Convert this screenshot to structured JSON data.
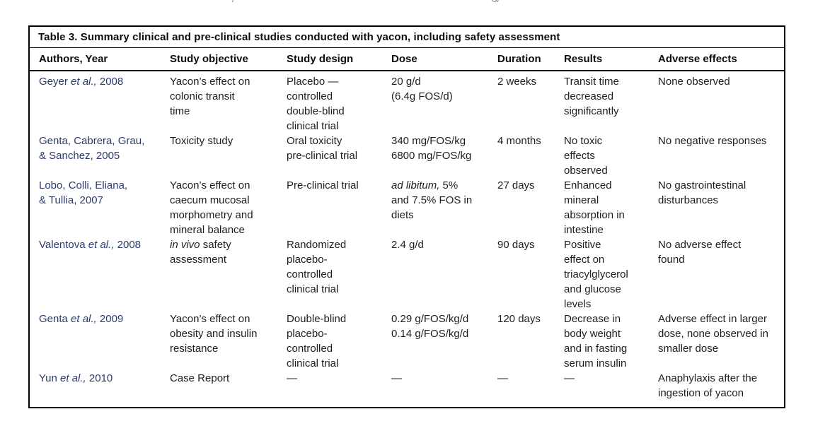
{
  "page": {
    "top_fragments": [
      "/",
      "o/"
    ]
  },
  "table": {
    "title": "Table 3. Summary clinical and pre-clinical studies conducted with yacon, including safety assessment",
    "columns": [
      "Authors, Year",
      "Study objective",
      "Study design",
      "Dose",
      "Duration",
      "Results",
      "Adverse effects"
    ],
    "colors": {
      "author_text": "#2d3a6d",
      "body_text": "#1e1e1e",
      "border": "#000000"
    },
    "rows": [
      {
        "authors": [
          {
            "t": "Geyer "
          },
          {
            "t": "et al.,",
            "i": true
          },
          {
            "t": " 2008"
          }
        ],
        "objective": [
          {
            "t": "Yacon’s effect on\ncolonic transit\ntime"
          }
        ],
        "design": [
          {
            "t": "Placebo —\ncontrolled\ndouble-blind\nclinical trial"
          }
        ],
        "dose": [
          {
            "t": "20 g/d\n(6.4g FOS/d)"
          }
        ],
        "duration": [
          {
            "t": "2 weeks"
          }
        ],
        "results": [
          {
            "t": "Transit time\ndecreased\nsignificantly"
          }
        ],
        "adverse": [
          {
            "t": "None observed"
          }
        ]
      },
      {
        "authors": [
          {
            "t": "Genta, Cabrera, Grau,\n& Sanchez, 2005"
          }
        ],
        "objective": [
          {
            "t": "Toxicity study"
          }
        ],
        "design": [
          {
            "t": "Oral toxicity\npre-clinical trial"
          }
        ],
        "dose": [
          {
            "t": "340 mg/FOS/kg\n6800 mg/FOS/kg"
          }
        ],
        "duration": [
          {
            "t": "4 months"
          }
        ],
        "results": [
          {
            "t": "No toxic\neffects\nobserved"
          }
        ],
        "adverse": [
          {
            "t": "No negative responses"
          }
        ]
      },
      {
        "authors": [
          {
            "t": "Lobo, Colli, Eliana,\n& Tullia, 2007"
          }
        ],
        "objective": [
          {
            "t": "Yacon’s effect on\ncaecum mucosal\nmorphometry and\nmineral balance"
          }
        ],
        "design": [
          {
            "t": "Pre-clinical trial"
          }
        ],
        "dose": [
          {
            "t": "ad libitum,",
            "i": true
          },
          {
            "t": " 5%\nand 7.5% FOS in\ndiets"
          }
        ],
        "duration": [
          {
            "t": "27 days"
          }
        ],
        "results": [
          {
            "t": "Enhanced\nmineral\nabsorption in\nintestine"
          }
        ],
        "adverse": [
          {
            "t": "No gastrointestinal\ndisturbances"
          }
        ]
      },
      {
        "authors": [
          {
            "t": "Valentova "
          },
          {
            "t": "et al.,",
            "i": true
          },
          {
            "t": " 2008"
          }
        ],
        "objective": [
          {
            "t": "in vivo",
            "i": true
          },
          {
            "t": " safety\nassessment"
          }
        ],
        "design": [
          {
            "t": "Randomized\nplacebo-\ncontrolled\nclinical trial"
          }
        ],
        "dose": [
          {
            "t": "2.4 g/d"
          }
        ],
        "duration": [
          {
            "t": "90 days"
          }
        ],
        "results": [
          {
            "t": "Positive\neffect on\ntriacylglycerol\nand glucose\nlevels"
          }
        ],
        "adverse": [
          {
            "t": "No adverse effect\nfound"
          }
        ]
      },
      {
        "authors": [
          {
            "t": "Genta "
          },
          {
            "t": "et al.,",
            "i": true
          },
          {
            "t": " 2009"
          }
        ],
        "objective": [
          {
            "t": "Yacon’s effect on\nobesity and insulin\nresistance"
          }
        ],
        "design": [
          {
            "t": "Double-blind\nplacebo-\ncontrolled\nclinical trial"
          }
        ],
        "dose": [
          {
            "t": "0.29 g/FOS/kg/d\n0.14 g/FOS/kg/d"
          }
        ],
        "duration": [
          {
            "t": "120 days"
          }
        ],
        "results": [
          {
            "t": "Decrease in\nbody weight\nand in fasting\nserum insulin"
          }
        ],
        "adverse": [
          {
            "t": "Adverse effect in larger\ndose, none observed in\nsmaller dose"
          }
        ]
      },
      {
        "authors": [
          {
            "t": "Yun "
          },
          {
            "t": "et al.,",
            "i": true
          },
          {
            "t": " 2010"
          }
        ],
        "objective": [
          {
            "t": "Case Report"
          }
        ],
        "design": [
          {
            "t": "—"
          }
        ],
        "dose": [
          {
            "t": "—"
          }
        ],
        "duration": [
          {
            "t": "—"
          }
        ],
        "results": [
          {
            "t": "—"
          }
        ],
        "adverse": [
          {
            "t": "Anaphylaxis after the\ningestion of yacon"
          }
        ]
      }
    ]
  }
}
